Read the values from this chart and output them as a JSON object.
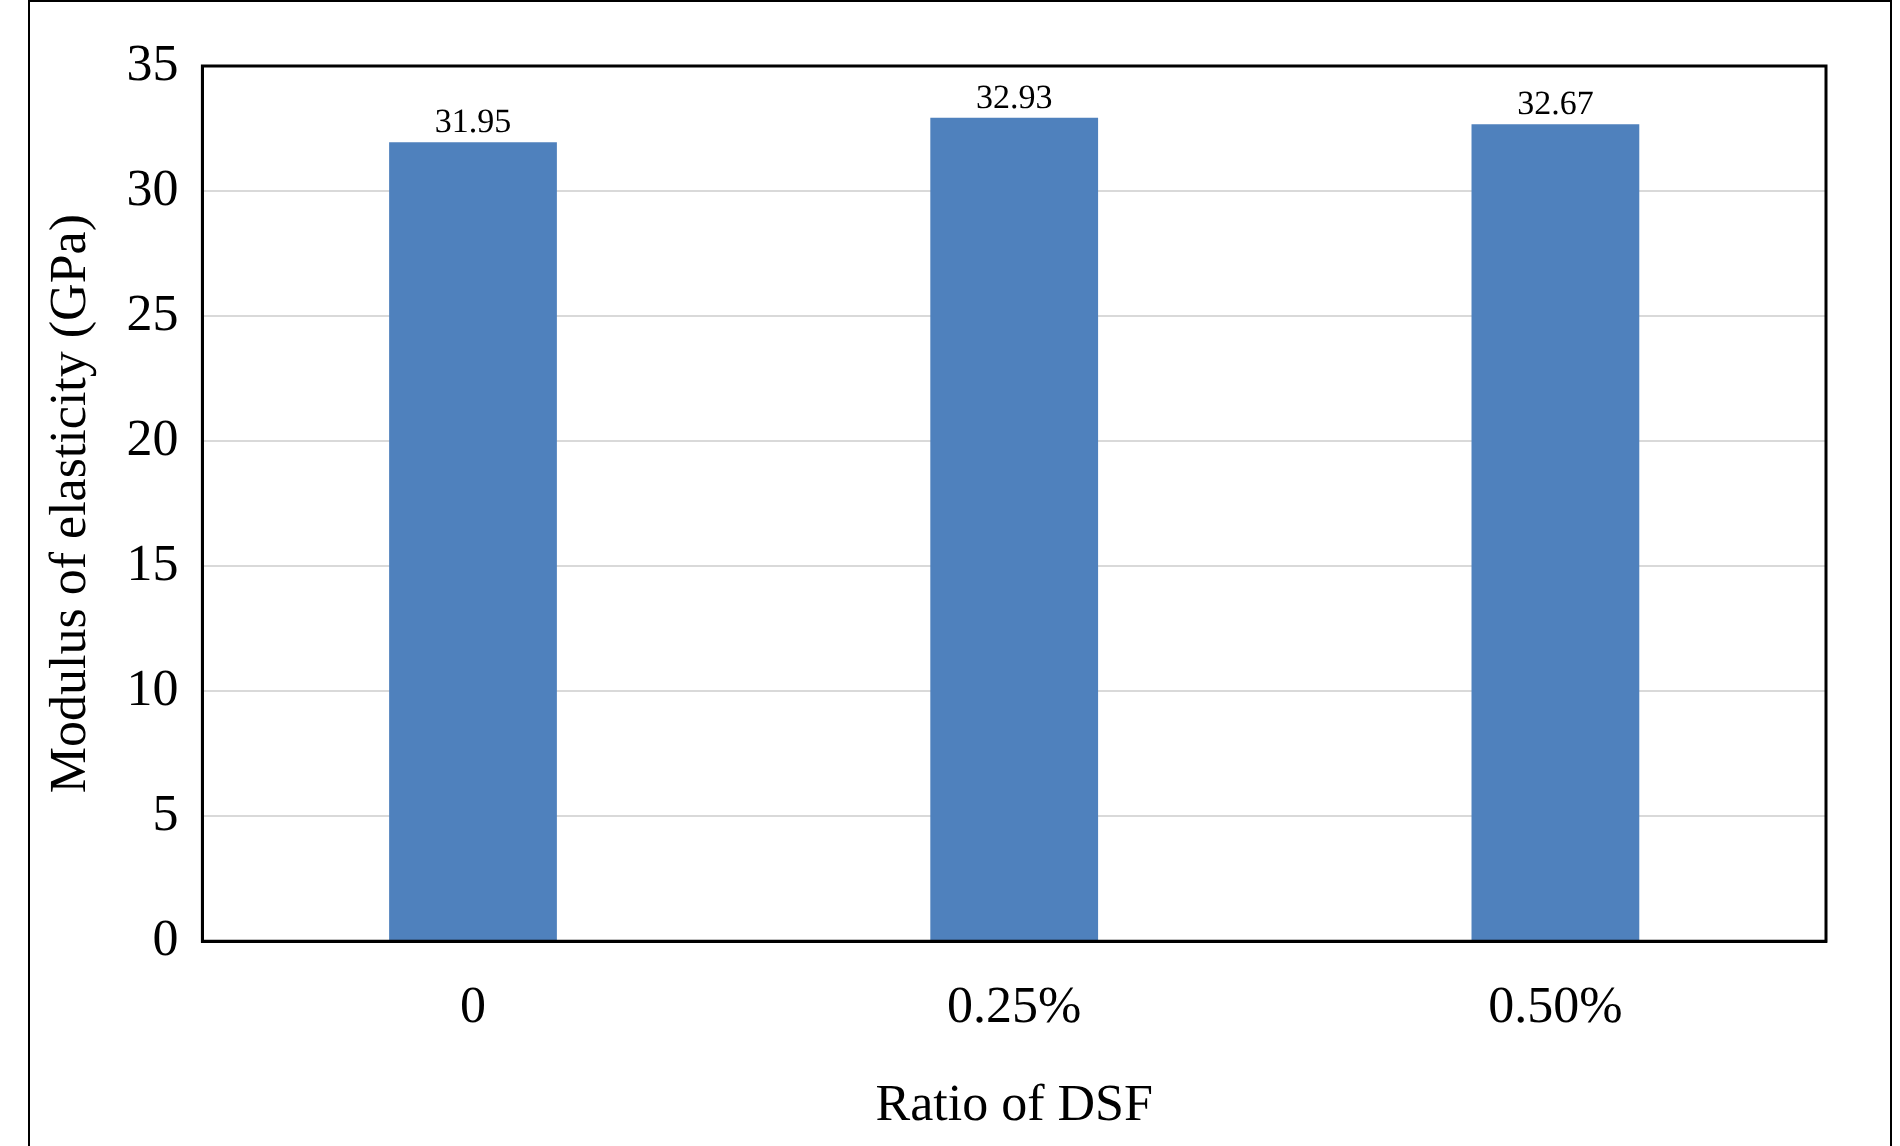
{
  "chart_data": {
    "type": "bar",
    "xlabel": "Ratio of DSF",
    "ylabel": "Modulus of elasticity (GPa)",
    "categories": [
      "0",
      "0.25%",
      "0.50%"
    ],
    "values": [
      31.95,
      32.93,
      32.67
    ],
    "color": "#4f81bd",
    "ylim": [
      0,
      35
    ],
    "yticks": [
      0,
      5,
      10,
      15,
      20,
      25,
      30,
      35
    ],
    "grid": "y",
    "legend": false,
    "data_labels": true
  }
}
